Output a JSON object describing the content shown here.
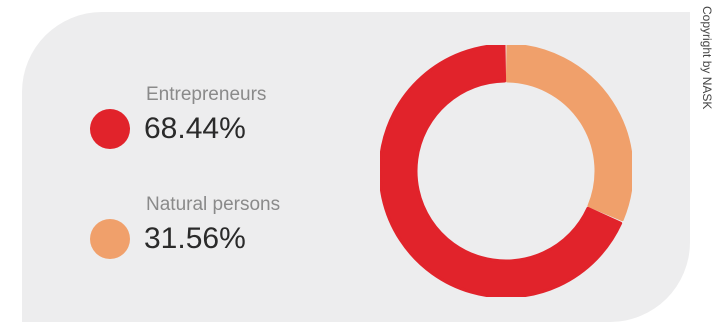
{
  "chart_data": {
    "type": "pie",
    "style": "donut",
    "categories": [
      "Entrepreneurs",
      "Natural persons"
    ],
    "values": [
      68.44,
      31.56
    ],
    "value_labels": [
      "68.44%",
      "31.56%"
    ],
    "colors": [
      "#e1232b",
      "#f0a06b"
    ],
    "unit": "%",
    "legend_placement": "left"
  },
  "copyright": "Copyright by NASK",
  "background_color": "#ededee"
}
